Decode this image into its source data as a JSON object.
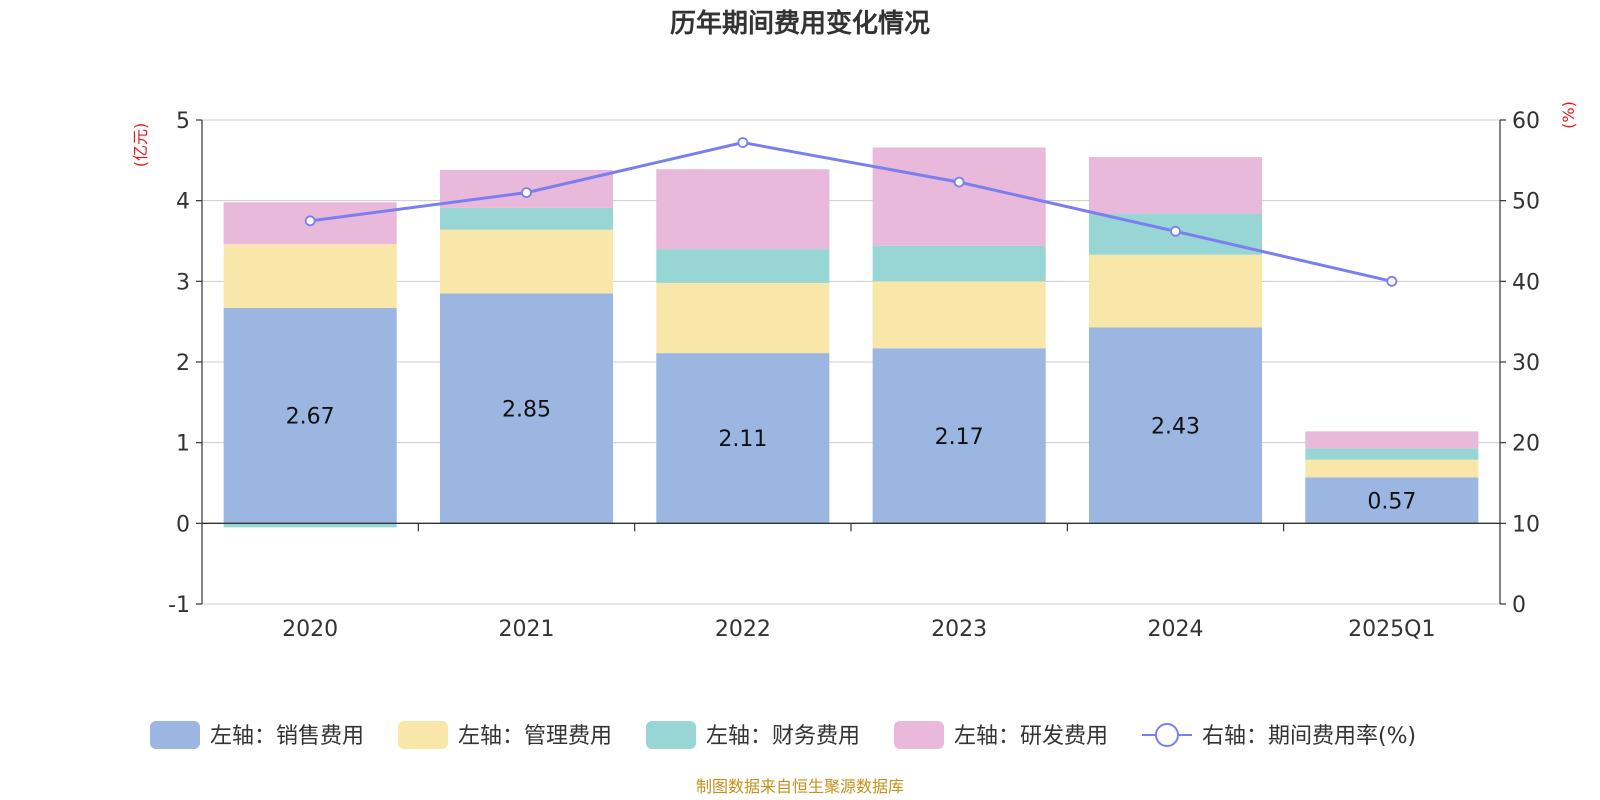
{
  "chart_data": {
    "type": "bar",
    "stacked": true,
    "title": "历年期间费用变化情况",
    "categories": [
      "2020",
      "2021",
      "2022",
      "2023",
      "2024",
      "2025Q1"
    ],
    "left_axis": {
      "unit": "(亿元)",
      "ylim": [
        -1,
        5
      ],
      "ticks": [
        -1,
        0,
        1,
        2,
        3,
        4,
        5
      ]
    },
    "right_axis": {
      "unit": "(%)",
      "ylim": [
        0,
        60
      ],
      "ticks": [
        0,
        10,
        20,
        30,
        40,
        50,
        60
      ]
    },
    "series": [
      {
        "name": "左轴：销售费用",
        "type": "bar",
        "axis": "left",
        "color": "#9ab6e1",
        "values": [
          2.67,
          2.85,
          2.11,
          2.17,
          2.43,
          0.57
        ],
        "labels": [
          "2.67",
          "2.85",
          "2.11",
          "2.17",
          "2.43",
          "0.57"
        ]
      },
      {
        "name": "左轴：管理费用",
        "type": "bar",
        "axis": "left",
        "color": "#f8e7a8",
        "values": [
          0.79,
          0.79,
          0.87,
          0.83,
          0.9,
          0.22
        ]
      },
      {
        "name": "左轴：财务费用",
        "type": "bar",
        "axis": "left",
        "color": "#98d5d5",
        "values": [
          -0.05,
          0.27,
          0.42,
          0.44,
          0.51,
          0.14
        ]
      },
      {
        "name": "左轴：研发费用",
        "type": "bar",
        "axis": "left",
        "color": "#e8b9da",
        "values": [
          0.52,
          0.47,
          0.99,
          1.22,
          0.7,
          0.21
        ]
      },
      {
        "name": "右轴：期间费用率(%)",
        "type": "line",
        "axis": "right",
        "color": "#7a7ff0",
        "values": [
          47.5,
          51.0,
          57.2,
          52.3,
          46.2,
          40.0
        ]
      }
    ],
    "legend_position": "bottom",
    "source": "制图数据来自恒生聚源数据库"
  }
}
